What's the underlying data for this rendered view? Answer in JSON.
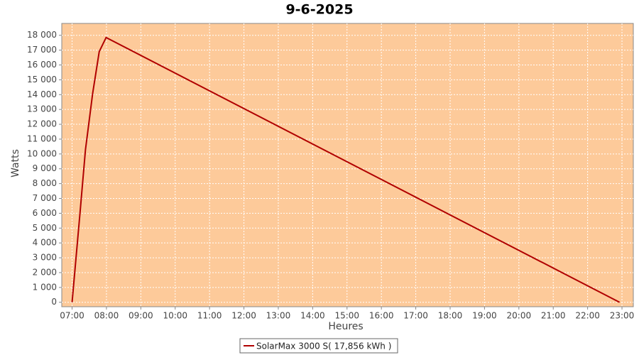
{
  "chart_data": {
    "type": "line",
    "title": "9-6-2025",
    "x_label": "Heures",
    "y_label": "Watts",
    "x": [
      7.0,
      7.23,
      7.39,
      7.6,
      7.79,
      7.99,
      22.93
    ],
    "series": [
      {
        "name": "SolarMax 3000 S( 17,856 kWh )",
        "color": "#b00000",
        "values": [
          0,
          6000,
          10300,
          14100,
          16900,
          17850,
          0
        ]
      }
    ],
    "xlim": [
      6.7,
      23.33
    ],
    "ylim": [
      -300,
      18800
    ],
    "xticks": [
      {
        "value": 7,
        "label": "07:00"
      },
      {
        "value": 8,
        "label": "08:00"
      },
      {
        "value": 9,
        "label": "09:00"
      },
      {
        "value": 10,
        "label": "10:00"
      },
      {
        "value": 11,
        "label": "11:00"
      },
      {
        "value": 12,
        "label": "12:00"
      },
      {
        "value": 13,
        "label": "13:00"
      },
      {
        "value": 14,
        "label": "14:00"
      },
      {
        "value": 15,
        "label": "15:00"
      },
      {
        "value": 16,
        "label": "16:00"
      },
      {
        "value": 17,
        "label": "17:00"
      },
      {
        "value": 18,
        "label": "18:00"
      },
      {
        "value": 19,
        "label": "19:00"
      },
      {
        "value": 20,
        "label": "20:00"
      },
      {
        "value": 21,
        "label": "21:00"
      },
      {
        "value": 22,
        "label": "22:00"
      },
      {
        "value": 23,
        "label": "23:00"
      }
    ],
    "yticks": [
      0,
      {
        "value": 1000,
        "label": "1 000"
      },
      {
        "value": 2000,
        "label": "2 000"
      },
      {
        "value": 3000,
        "label": "3 000"
      },
      {
        "value": 4000,
        "label": "4 000"
      },
      {
        "value": 5000,
        "label": "5 000"
      },
      {
        "value": 6000,
        "label": "6 000"
      },
      {
        "value": 7000,
        "label": "7 000"
      },
      {
        "value": 8000,
        "label": "8 000"
      },
      {
        "value": 9000,
        "label": "9 000"
      },
      {
        "value": 10000,
        "label": "10 000"
      },
      {
        "value": 11000,
        "label": "11 000"
      },
      {
        "value": 12000,
        "label": "12 000"
      },
      {
        "value": 13000,
        "label": "13 000"
      },
      {
        "value": 14000,
        "label": "14 000"
      },
      {
        "value": 15000,
        "label": "15 000"
      },
      {
        "value": 16000,
        "label": "16 000"
      },
      {
        "value": 17000,
        "label": "17 000"
      },
      {
        "value": 18000,
        "label": "18 000"
      }
    ],
    "grid": true,
    "plot_background": "#fdca9a",
    "legend_position": "bottom"
  }
}
